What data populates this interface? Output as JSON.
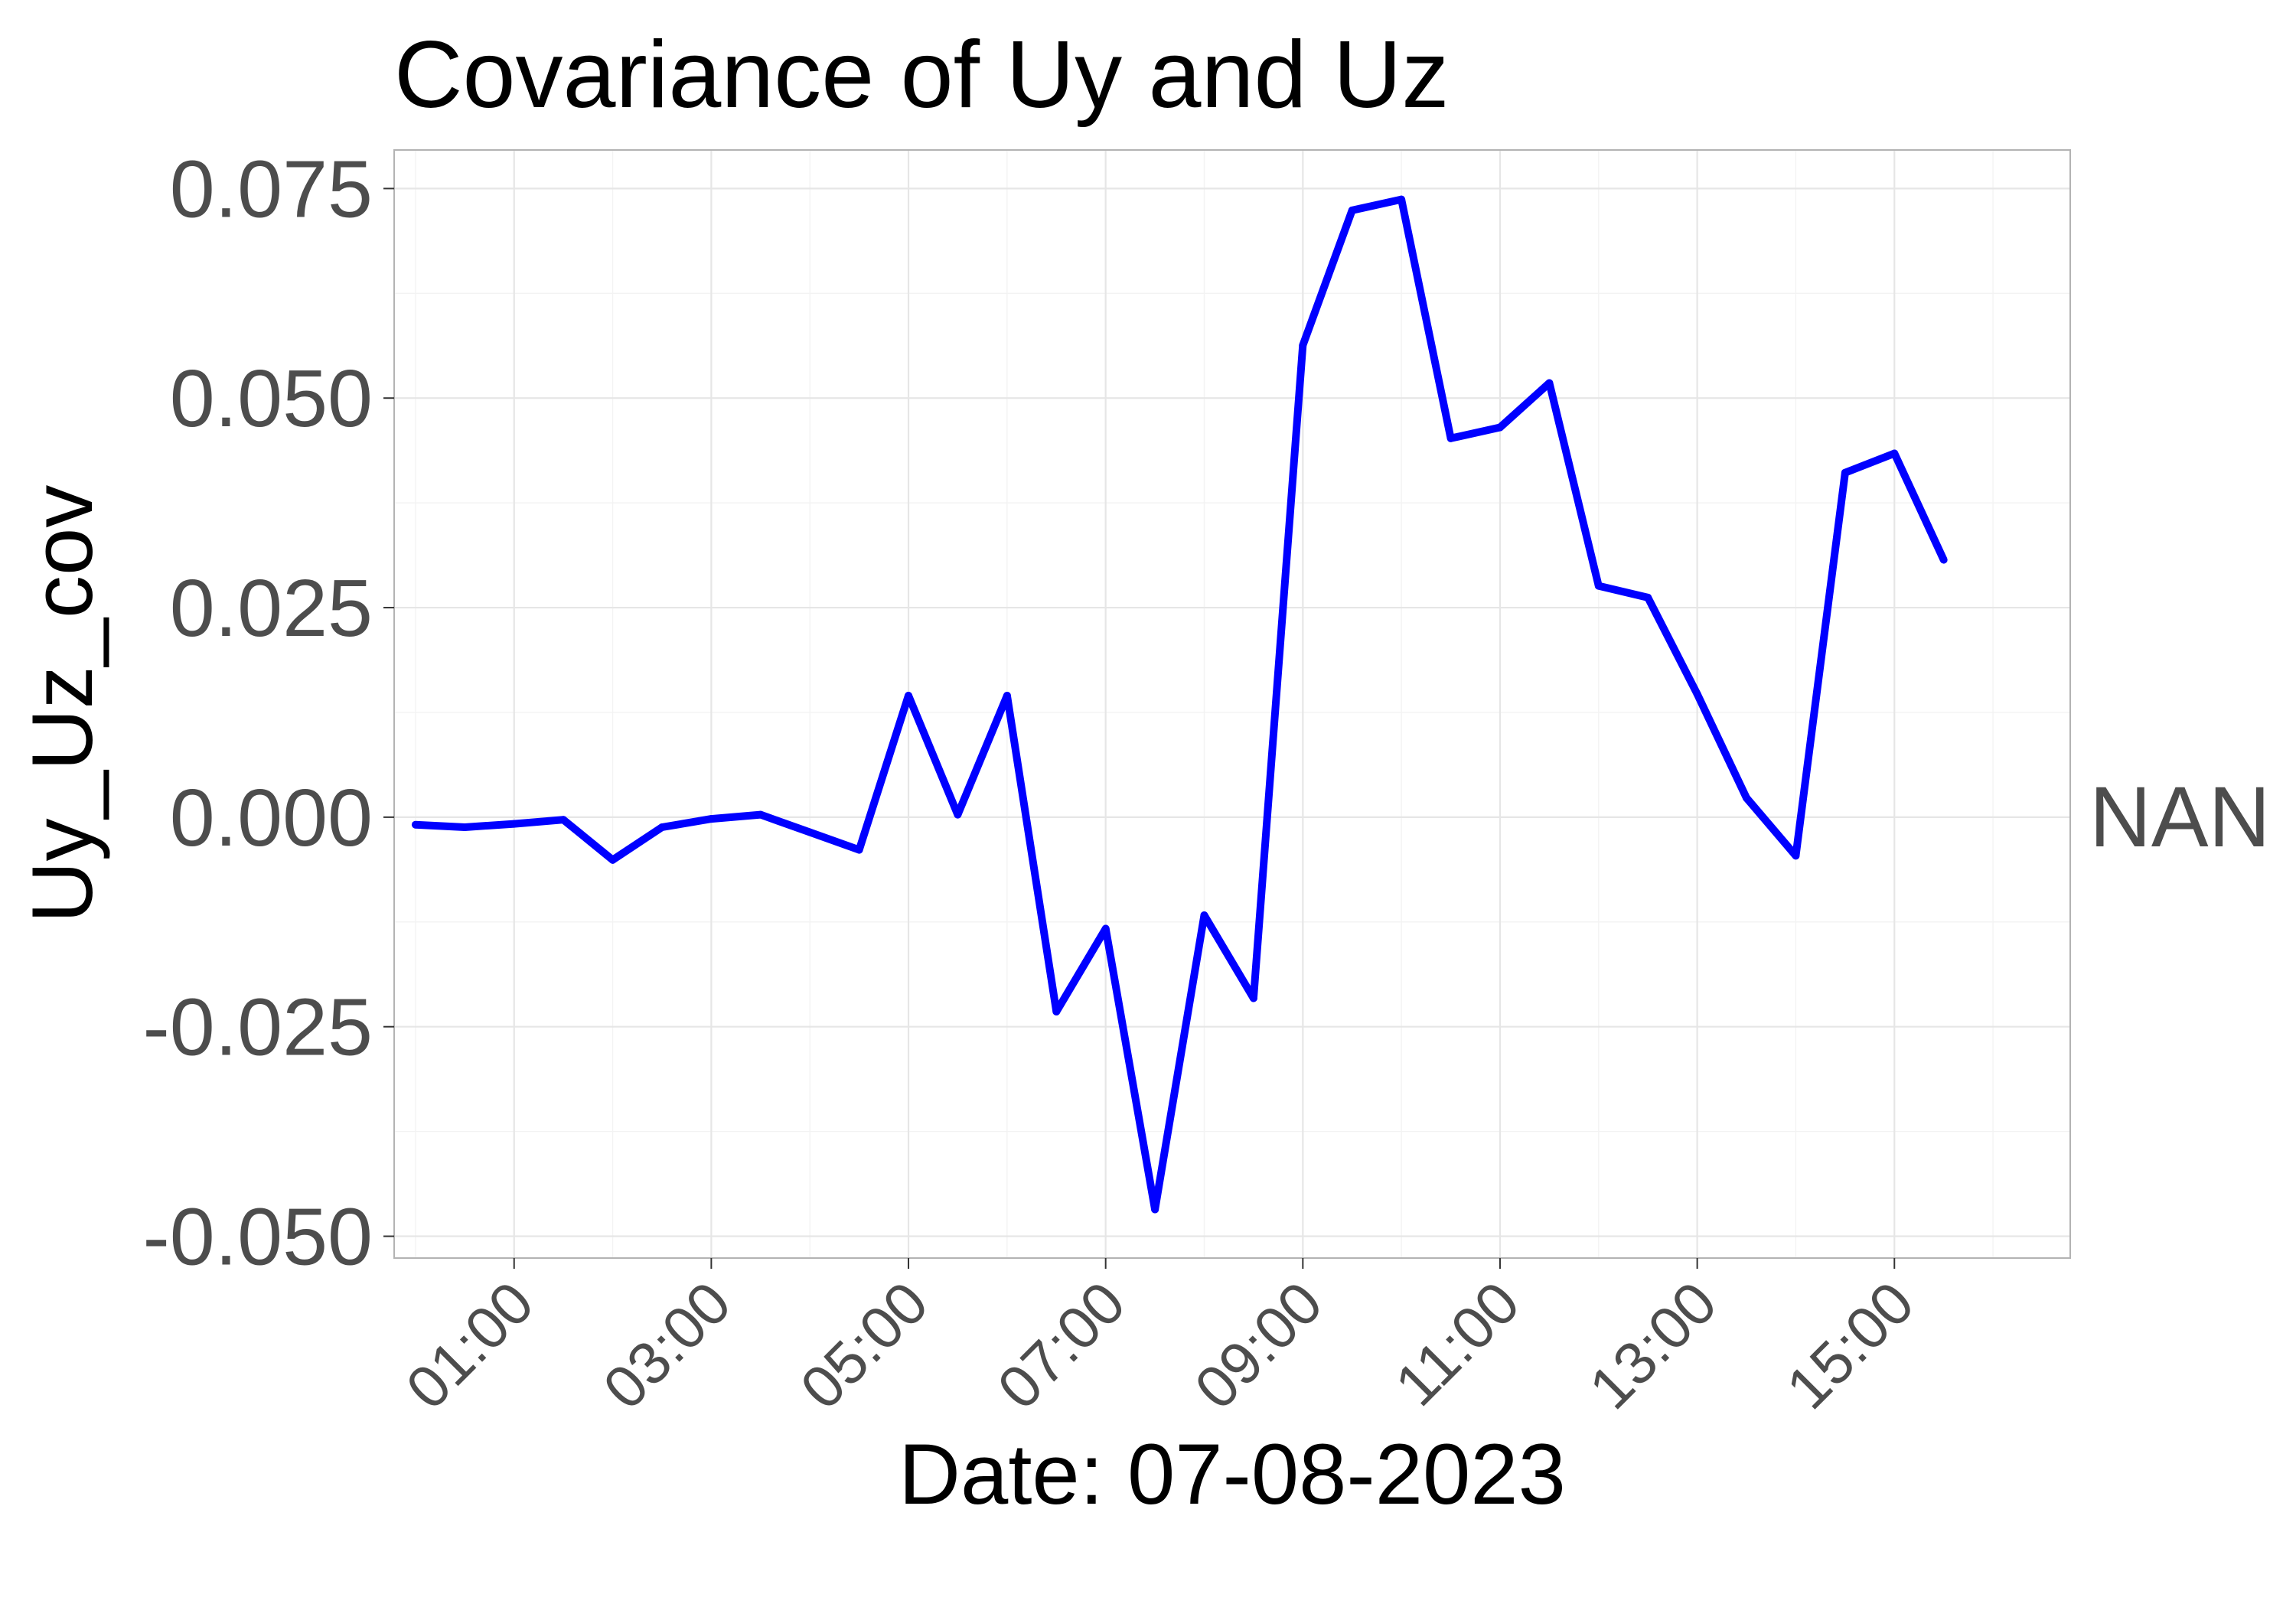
{
  "chart_data": {
    "type": "line",
    "title": "Covariance of Uy and Uz",
    "xlabel": "Date: 07-08-2023",
    "ylabel": "Uy_Uz_cov",
    "right_label": "NAN",
    "y_ticks": [
      "0.075",
      "0.050",
      "0.025",
      "0.000",
      "-0.025",
      "-0.050"
    ],
    "y_tick_values": [
      0.075,
      0.05,
      0.025,
      0.0,
      -0.025,
      -0.05
    ],
    "x_ticks": [
      "01:00",
      "03:00",
      "05:00",
      "07:00",
      "09:00",
      "11:00",
      "13:00",
      "15:00"
    ],
    "x_tick_values": [
      "01:00",
      "03:00",
      "05:00",
      "07:00",
      "09:00",
      "11:00",
      "13:00",
      "15:00"
    ],
    "xlim": [
      "23:47",
      "16:47"
    ],
    "ylim": [
      -0.0526,
      0.0796
    ],
    "grid": true,
    "line_color": "#0000ff",
    "series": [
      {
        "x": [
          "00:00",
          "00:30",
          "01:00",
          "01:30",
          "02:00",
          "02:30",
          "03:00",
          "03:30",
          "04:00",
          "04:30",
          "05:00",
          "05:30",
          "06:00",
          "06:30",
          "07:00",
          "07:30",
          "08:00",
          "08:30",
          "09:00",
          "09:30",
          "10:00",
          "10:30",
          "11:00",
          "11:30",
          "12:00",
          "12:30",
          "13:00",
          "13:30",
          "14:00",
          "14:30",
          "15:00",
          "15:30"
        ],
        "values": [
          -0.0009,
          -0.0012,
          -0.0008,
          -0.0003,
          -0.0051,
          -0.0012,
          -0.0002,
          0.0003,
          -0.0018,
          -0.0039,
          0.0145,
          0.0003,
          0.0145,
          -0.0232,
          -0.0133,
          -0.0468,
          -0.0117,
          -0.0216,
          0.0563,
          0.0724,
          0.0737,
          0.0452,
          0.0465,
          0.0518,
          0.0276,
          0.0262,
          0.0147,
          0.0023,
          -0.0046,
          0.0411,
          0.0434,
          0.0307
        ]
      }
    ]
  }
}
